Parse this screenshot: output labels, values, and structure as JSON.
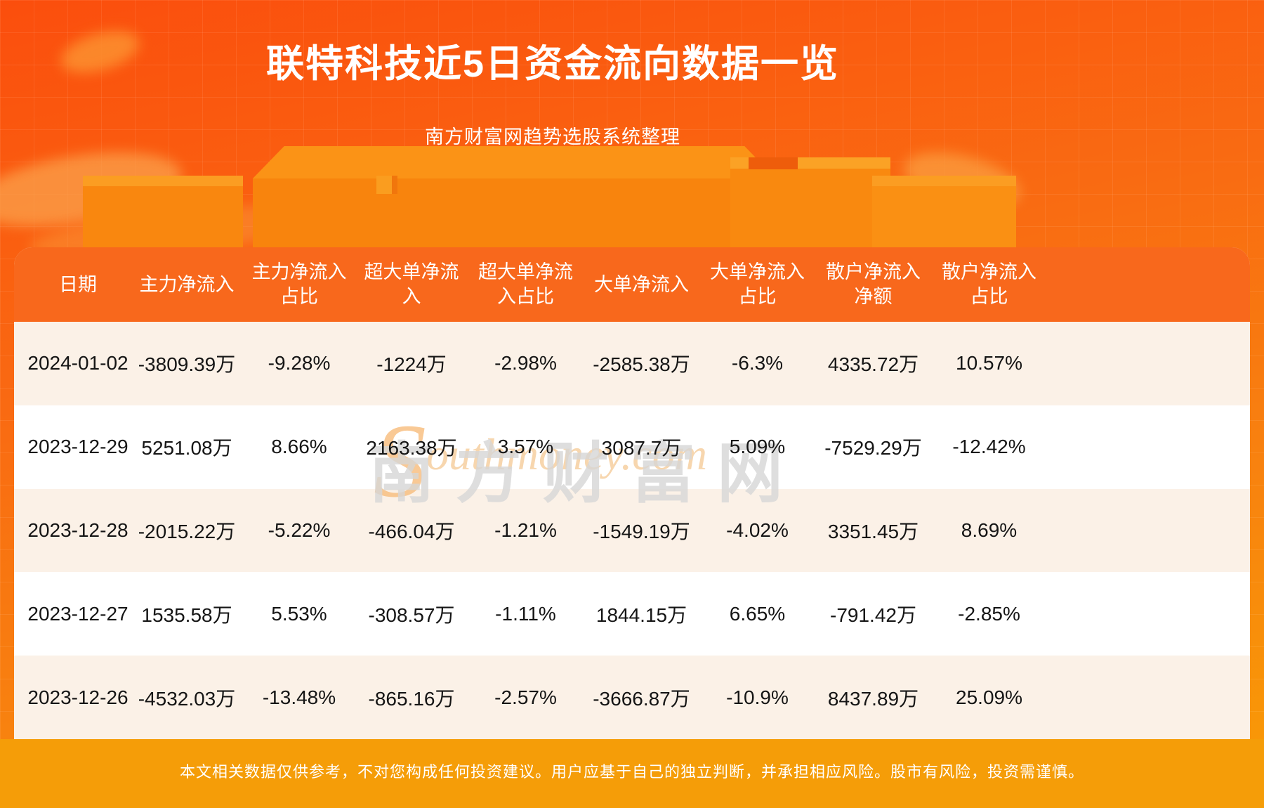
{
  "page": {
    "title": "联特科技近5日资金流向数据一览",
    "subtitle": "南方财富网趋势选股系统整理",
    "disclaimer": "本文相关数据仅供参考，不对您构成任何投资建议。用户应基于自己的独立判断，并承担相应风险。股市有风险，投资需谨慎。"
  },
  "watermark": {
    "cn": "南方财富网",
    "en_initial": "S",
    "en_rest": "outhmoney.com"
  },
  "table": {
    "header_display": [
      "日期",
      "主力净流入",
      "主力净流入\n占比",
      "超大单净流\n入",
      "超大单净流\n入占比",
      "大单净流入",
      "大单净流入\n占比",
      "散户净流入\n净额",
      "散户净流入\n占比"
    ]
  },
  "chart_data": {
    "type": "table",
    "title": "联特科技近5日资金流向数据一览",
    "subtitle": "南方财富网趋势选股系统整理",
    "columns": [
      "日期",
      "主力净流入",
      "主力净流入占比",
      "超大单净流入",
      "超大单净流入占比",
      "大单净流入",
      "大单净流入占比",
      "散户净流入净额",
      "散户净流入占比"
    ],
    "rows": [
      [
        "2024-01-02",
        "-3809.39万",
        "-9.28%",
        "-1224万",
        "-2.98%",
        "-2585.38万",
        "-6.3%",
        "4335.72万",
        "10.57%"
      ],
      [
        "2023-12-29",
        "5251.08万",
        "8.66%",
        "2163.38万",
        "3.57%",
        "3087.7万",
        "5.09%",
        "-7529.29万",
        "-12.42%"
      ],
      [
        "2023-12-28",
        "-2015.22万",
        "-5.22%",
        "-466.04万",
        "-1.21%",
        "-1549.19万",
        "-4.02%",
        "3351.45万",
        "8.69%"
      ],
      [
        "2023-12-27",
        "1535.58万",
        "5.53%",
        "-308.57万",
        "-1.11%",
        "1844.15万",
        "6.65%",
        "-791.42万",
        "-2.85%"
      ],
      [
        "2023-12-26",
        "-4532.03万",
        "-13.48%",
        "-865.16万",
        "-2.57%",
        "-3666.87万",
        "-10.9%",
        "8437.89万",
        "25.09%"
      ]
    ]
  },
  "colors": {
    "background_top": "#fb4e0d",
    "background_bottom": "#f99c05",
    "table_header": "#f8681c",
    "row_cream": "#fbf1e7",
    "row_white": "#ffffff",
    "footer_band": "#f59d08",
    "text_dark": "#151515",
    "text_light": "#ffffff"
  }
}
